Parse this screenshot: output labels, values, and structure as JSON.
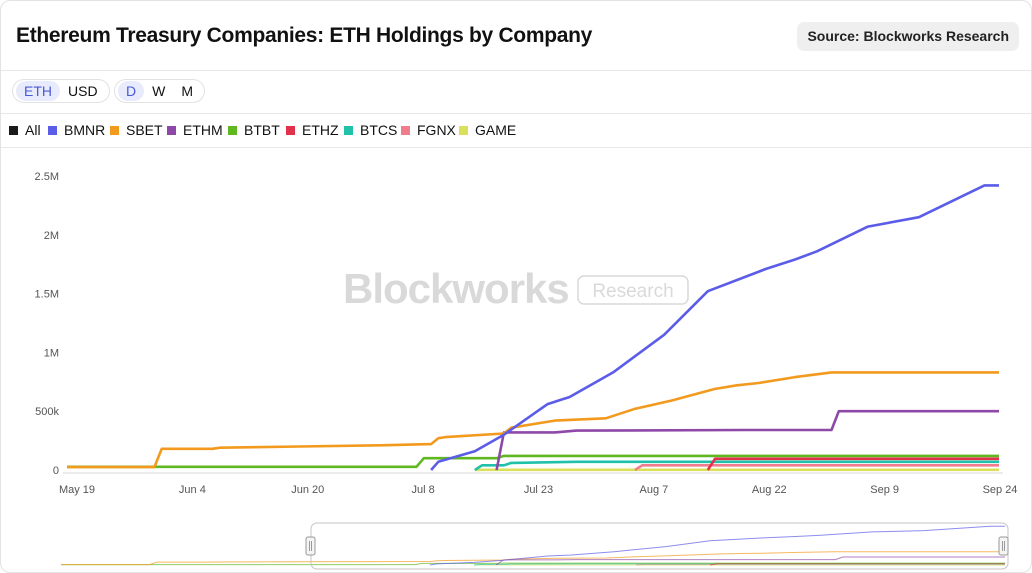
{
  "header": {
    "title": "Ethereum Treasury Companies: ETH Holdings by Company",
    "source": "Source: Blockworks Research"
  },
  "toolbar": {
    "unit_options": [
      "ETH",
      "USD"
    ],
    "unit_selected": "ETH",
    "interval_options": [
      "D",
      "W",
      "M"
    ],
    "interval_selected": "D"
  },
  "watermark": {
    "brand": "Blockworks",
    "tag": "Research"
  },
  "colors": {
    "All": "#1a1a1a",
    "BMNR": "#5b5ce8",
    "SBET": "#f29a1e",
    "ETHM": "#8e48a8",
    "BTBT": "#5fb820",
    "ETHZ": "#e0324a",
    "BTCS": "#1fc2a8",
    "FGNX": "#f07c8c",
    "GAME": "#dbe05a"
  },
  "chart_data": {
    "type": "line",
    "x_axis": {
      "ticks": [
        "May 19",
        "Jun 4",
        "Jun 20",
        "Jul 8",
        "Jul 23",
        "Aug 7",
        "Aug 22",
        "Sep 9",
        "Sep 24"
      ]
    },
    "y_axis": {
      "ticks": [
        "0",
        "500k",
        "1M",
        "1.5M",
        "2M",
        "2.5M"
      ],
      "ylim": [
        0,
        2500000
      ]
    },
    "legend": [
      "All",
      "BMNR",
      "SBET",
      "ETHM",
      "BTBT",
      "ETHZ",
      "BTCS",
      "FGNX",
      "GAME"
    ],
    "legend_position": "top",
    "grid": false,
    "series": [
      {
        "name": "BMNR",
        "points": [
          [
            "2025-07-08",
            0
          ],
          [
            "2025-07-09",
            70000
          ],
          [
            "2025-07-14",
            160000
          ],
          [
            "2025-07-18",
            300000
          ],
          [
            "2025-07-24",
            560000
          ],
          [
            "2025-07-26",
            600000
          ],
          [
            "2025-07-27",
            620000
          ],
          [
            "2025-08-02",
            830000
          ],
          [
            "2025-08-09",
            1150000
          ],
          [
            "2025-08-15",
            1520000
          ],
          [
            "2025-08-23",
            1710000
          ],
          [
            "2025-08-27",
            1790000
          ],
          [
            "2025-08-30",
            1860000
          ],
          [
            "2025-09-06",
            2070000
          ],
          [
            "2025-09-13",
            2150000
          ],
          [
            "2025-09-22",
            2420000
          ],
          [
            "2025-09-24",
            2420000
          ]
        ]
      },
      {
        "name": "SBET",
        "points": [
          [
            "2025-05-19",
            25000
          ],
          [
            "2025-05-31",
            25000
          ],
          [
            "2025-06-01",
            180000
          ],
          [
            "2025-06-08",
            180000
          ],
          [
            "2025-06-09",
            190000
          ],
          [
            "2025-06-20",
            200000
          ],
          [
            "2025-07-01",
            210000
          ],
          [
            "2025-07-08",
            220000
          ],
          [
            "2025-07-09",
            270000
          ],
          [
            "2025-07-10",
            280000
          ],
          [
            "2025-07-18",
            310000
          ],
          [
            "2025-07-19",
            360000
          ],
          [
            "2025-07-25",
            420000
          ],
          [
            "2025-08-01",
            440000
          ],
          [
            "2025-08-05",
            520000
          ],
          [
            "2025-08-10",
            590000
          ],
          [
            "2025-08-16",
            690000
          ],
          [
            "2025-08-19",
            720000
          ],
          [
            "2025-08-22",
            740000
          ],
          [
            "2025-08-27",
            790000
          ],
          [
            "2025-09-01",
            830000
          ],
          [
            "2025-09-24",
            830000
          ]
        ]
      },
      {
        "name": "ETHM",
        "points": [
          [
            "2025-07-17",
            0
          ],
          [
            "2025-07-18",
            320000
          ],
          [
            "2025-07-25",
            320000
          ],
          [
            "2025-07-28",
            335000
          ],
          [
            "2025-08-20",
            340000
          ],
          [
            "2025-09-01",
            340000
          ],
          [
            "2025-09-02",
            500000
          ],
          [
            "2025-09-24",
            500000
          ]
        ]
      },
      {
        "name": "BTBT",
        "points": [
          [
            "2025-05-19",
            27000
          ],
          [
            "2025-07-06",
            27000
          ],
          [
            "2025-07-07",
            100000
          ],
          [
            "2025-07-17",
            100000
          ],
          [
            "2025-07-18",
            120000
          ],
          [
            "2025-09-24",
            120000
          ]
        ]
      },
      {
        "name": "ETHZ",
        "points": [
          [
            "2025-08-15",
            0
          ],
          [
            "2025-08-16",
            95000
          ],
          [
            "2025-09-24",
            95000
          ]
        ]
      },
      {
        "name": "BTCS",
        "points": [
          [
            "2025-07-14",
            0
          ],
          [
            "2025-07-15",
            40000
          ],
          [
            "2025-07-18",
            40000
          ],
          [
            "2025-07-19",
            60000
          ],
          [
            "2025-07-28",
            70000
          ],
          [
            "2025-09-24",
            70000
          ]
        ]
      },
      {
        "name": "FGNX",
        "points": [
          [
            "2025-08-05",
            0
          ],
          [
            "2025-08-06",
            40000
          ],
          [
            "2025-09-24",
            40000
          ]
        ]
      },
      {
        "name": "GAME",
        "points": [
          [
            "2025-07-14",
            0
          ],
          [
            "2025-07-15",
            2000
          ],
          [
            "2025-09-24",
            2000
          ]
        ]
      }
    ]
  }
}
